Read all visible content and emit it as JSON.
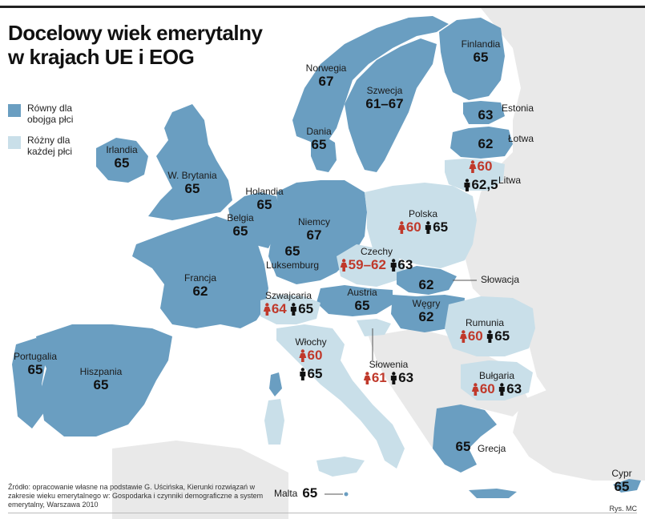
{
  "title_line1": "Docelowy wiek emerytalny",
  "title_line2": "w krajach UE i EOG",
  "colors": {
    "equal": "#6a9ec1",
    "different": "#c9dfe9",
    "land_other": "#e9e9e9",
    "sea": "#ffffff",
    "female": "#c0392b",
    "male": "#111111"
  },
  "legend": {
    "equal": "Równy dla obojga płci",
    "different": "Różny dla każdej płci"
  },
  "countries": {
    "finlandia": {
      "name": "Finlandia",
      "age": "65"
    },
    "norwegia": {
      "name": "Norwegia",
      "age": "67"
    },
    "szwecja": {
      "name": "Szwecja",
      "age": "61–67"
    },
    "estonia": {
      "name": "Estonia",
      "age": "63"
    },
    "lotwa": {
      "name": "Łotwa",
      "age": "62"
    },
    "litwa": {
      "name": "Litwa",
      "female": "60",
      "male": "62,5"
    },
    "dania": {
      "name": "Dania",
      "age": "65"
    },
    "irlandia": {
      "name": "Irlandia",
      "age": "65"
    },
    "wbrytania": {
      "name": "W. Brytania",
      "age": "65"
    },
    "holandia": {
      "name": "Holandia",
      "age": "65"
    },
    "belgia": {
      "name": "Belgia",
      "age": "65"
    },
    "luksemburg": {
      "name": "Luksemburg",
      "age": "65"
    },
    "niemcy": {
      "name": "Niemcy",
      "age": "67"
    },
    "polska": {
      "name": "Polska",
      "female": "60",
      "male": "65"
    },
    "czechy": {
      "name": "Czechy",
      "female": "59–62",
      "male": "63"
    },
    "slowacja": {
      "name": "Słowacja",
      "age": "62"
    },
    "francja": {
      "name": "Francja",
      "age": "62"
    },
    "szwajcaria": {
      "name": "Szwajcaria",
      "female": "64",
      "male": "65"
    },
    "austria": {
      "name": "Austria",
      "age": "65"
    },
    "wegry": {
      "name": "Węgry",
      "age": "62"
    },
    "rumunia": {
      "name": "Rumunia",
      "female": "60",
      "male": "65"
    },
    "wlochy": {
      "name": "Włochy",
      "female": "60",
      "male": "65"
    },
    "slowenia": {
      "name": "Słowenia",
      "female": "61",
      "male": "63"
    },
    "bulgaria": {
      "name": "Bułgaria",
      "female": "60",
      "male": "63"
    },
    "portugalia": {
      "name": "Portugalia",
      "age": "65"
    },
    "hiszpania": {
      "name": "Hiszpania",
      "age": "65"
    },
    "grecja": {
      "name": "Grecja",
      "age": "65"
    },
    "malta": {
      "name": "Malta",
      "age": "65"
    },
    "cypr": {
      "name": "Cypr",
      "age": "65"
    }
  },
  "source": "Źródło: opracowanie własne na podstawie G. Uścińska, Kierunki rozwiązań w zakresie wieku emerytalnego w: Gospodarka i czynniki demograficzne a system emerytalny, Warszawa 2010",
  "credit": "Rys. MC"
}
